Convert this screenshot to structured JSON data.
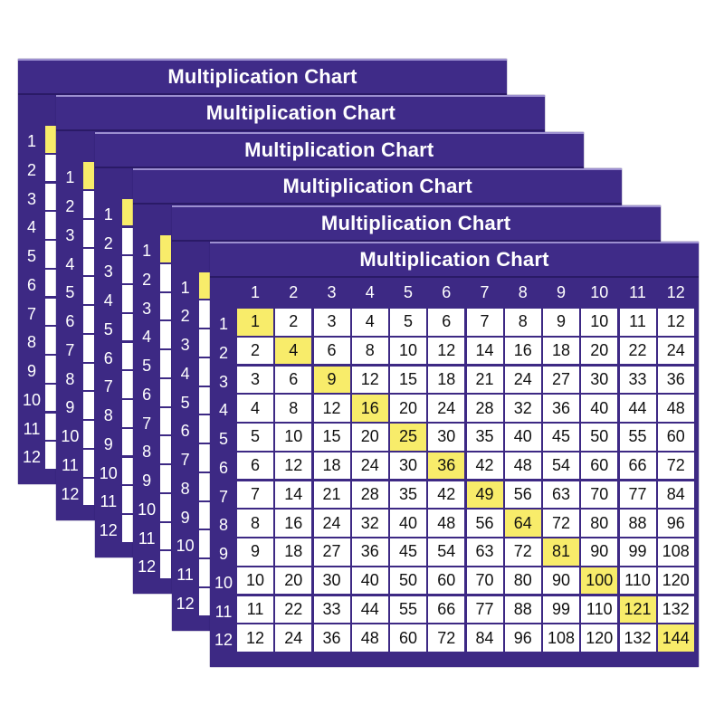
{
  "title": "Multiplication Chart",
  "card_count": 6,
  "colors": {
    "background": "#3d2984",
    "diagonal_highlight": "#f8ec6a",
    "cell": "#ffffff"
  },
  "column_headers": [
    "1",
    "2",
    "3",
    "4",
    "5",
    "6",
    "7",
    "8",
    "9",
    "10",
    "11",
    "12"
  ],
  "row_headers": [
    "1",
    "2",
    "3",
    "4",
    "5",
    "6",
    "7",
    "8",
    "9",
    "10",
    "11",
    "12"
  ],
  "table": [
    [
      "1",
      "2",
      "3",
      "4",
      "5",
      "6",
      "7",
      "8",
      "9",
      "10",
      "11",
      "12"
    ],
    [
      "2",
      "4",
      "6",
      "8",
      "10",
      "12",
      "14",
      "16",
      "18",
      "20",
      "22",
      "24"
    ],
    [
      "3",
      "6",
      "9",
      "12",
      "15",
      "18",
      "21",
      "24",
      "27",
      "30",
      "33",
      "36"
    ],
    [
      "4",
      "8",
      "12",
      "16",
      "20",
      "24",
      "28",
      "32",
      "36",
      "40",
      "44",
      "48"
    ],
    [
      "5",
      "10",
      "15",
      "20",
      "25",
      "30",
      "35",
      "40",
      "45",
      "50",
      "55",
      "60"
    ],
    [
      "6",
      "12",
      "18",
      "24",
      "30",
      "36",
      "42",
      "48",
      "54",
      "60",
      "66",
      "72"
    ],
    [
      "7",
      "14",
      "21",
      "28",
      "35",
      "42",
      "49",
      "56",
      "63",
      "70",
      "77",
      "84"
    ],
    [
      "8",
      "16",
      "24",
      "32",
      "40",
      "48",
      "56",
      "64",
      "72",
      "80",
      "88",
      "96"
    ],
    [
      "9",
      "18",
      "27",
      "36",
      "45",
      "54",
      "63",
      "72",
      "81",
      "90",
      "99",
      "108"
    ],
    [
      "10",
      "20",
      "30",
      "40",
      "50",
      "60",
      "70",
      "80",
      "90",
      "100",
      "110",
      "120"
    ],
    [
      "11",
      "22",
      "33",
      "44",
      "55",
      "66",
      "77",
      "88",
      "99",
      "110",
      "121",
      "132"
    ],
    [
      "12",
      "24",
      "36",
      "48",
      "60",
      "72",
      "84",
      "96",
      "108",
      "120",
      "132",
      "144"
    ]
  ]
}
